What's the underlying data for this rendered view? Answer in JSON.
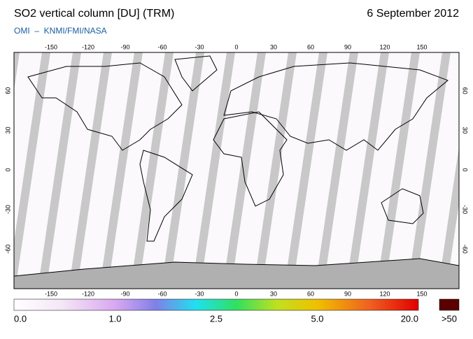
{
  "header": {
    "title": "SO2 vertical column [DU] (TRM)",
    "date": "6 September 2012",
    "source": "OMI  –  KNMI/FMI/NASA"
  },
  "map": {
    "longitude_ticks": [
      -150,
      -120,
      -90,
      -60,
      -30,
      0,
      30,
      60,
      90,
      120,
      150
    ],
    "latitude_ticks": [
      60,
      30,
      0,
      -30,
      -60
    ]
  },
  "colorbar": {
    "labels": [
      "0.0",
      "1.0",
      "2.5",
      "5.0",
      "20.0"
    ],
    "overflow_label": ">50"
  }
}
